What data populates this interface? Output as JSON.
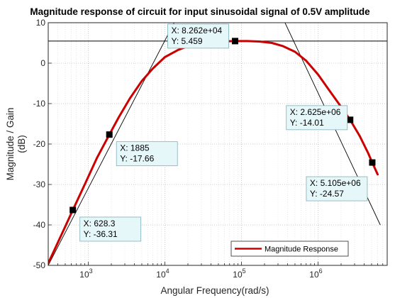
{
  "chart_data": {
    "type": "line",
    "title": "Magnitude response of circuit for input sinusoidal signal of 0.5V amplitude",
    "xlabel": "Angular Frequency(rad/s)",
    "ylabel_line1": "Magnitude / Gain",
    "ylabel_line2": "(dB)",
    "xscale": "log",
    "xlim": [
      300,
      8000000
    ],
    "ylim": [
      -50,
      10
    ],
    "grid": "on (major and minor, dotted)",
    "yticks": [
      "-50",
      "-40",
      "-30",
      "-20",
      "-10",
      "0",
      "10"
    ],
    "xticks": [
      {
        "base": "10",
        "exp": "3"
      },
      {
        "base": "10",
        "exp": "4"
      },
      {
        "base": "10",
        "exp": "5"
      },
      {
        "base": "10",
        "exp": "6"
      }
    ],
    "series": [
      {
        "name": "Magnitude Response",
        "color": "#cc0000",
        "x": [
          300,
          450,
          628.3,
          900,
          1300,
          1885,
          2500,
          3500,
          5000,
          7000,
          10000,
          15000,
          20000,
          30000,
          40000,
          60000,
          82620,
          120000,
          170000,
          250000,
          350000,
          500000,
          700000,
          1000000,
          1500000,
          2000000,
          2625000,
          3500000,
          4500000,
          5105000,
          6000000
        ],
        "y": [
          -49.5,
          -42.3,
          -36.31,
          -30.0,
          -23.4,
          -17.66,
          -13.4,
          -8.7,
          -4.4,
          -1.3,
          1.5,
          3.3,
          4.2,
          4.9,
          5.2,
          5.4,
          5.459,
          5.45,
          5.35,
          5.0,
          4.2,
          2.8,
          0.6,
          -2.8,
          -7.5,
          -10.8,
          -14.01,
          -18.0,
          -22.2,
          -24.57,
          -27.5
        ]
      }
    ],
    "reference_lines": [
      {
        "kind": "horizontal",
        "y": 5.459
      },
      {
        "kind": "asymptote",
        "x": [
          300,
          15000
        ],
        "y": [
          -50,
          12
        ]
      },
      {
        "kind": "asymptote",
        "x": [
          330000,
          6500000
        ],
        "y": [
          12,
          -40
        ]
      }
    ],
    "datatips": [
      {
        "x_text": "X: 628.3",
        "y_text": "Y: -36.31",
        "x": 628.3,
        "y": -36.31
      },
      {
        "x_text": "X: 1885",
        "y_text": "Y: -17.66",
        "x": 1885,
        "y": -17.66
      },
      {
        "x_text": "X: 8.262e+04",
        "y_text": "Y: 5.459",
        "x": 82620,
        "y": 5.459
      },
      {
        "x_text": "X: 2.625e+06",
        "y_text": "Y: -14.01",
        "x": 2625000,
        "y": -14.01
      },
      {
        "x_text": "X: 5.105e+06",
        "y_text": "Y: -24.57",
        "x": 5105000,
        "y": -24.57
      }
    ],
    "legend": {
      "label": "Magnitude Response",
      "placement": "bottom-right"
    }
  }
}
